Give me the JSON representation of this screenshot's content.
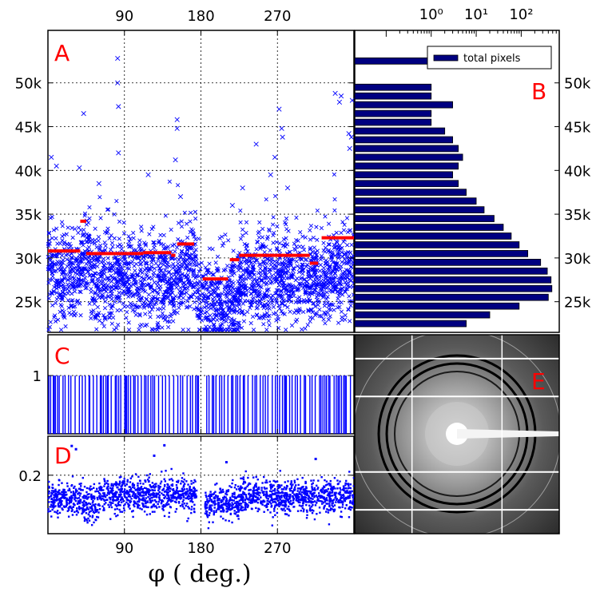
{
  "xlabel": "φ ( deg.)",
  "colors": {
    "scatter": "#0000ff",
    "median": "#ff0000",
    "bar": "#000080",
    "frame": "#000000"
  },
  "chart_data": [
    {
      "panel": "A",
      "type": "scatter",
      "xlim": [
        0,
        360
      ],
      "ylim": [
        21500,
        56000
      ],
      "x_ticks": [
        90,
        180,
        270
      ],
      "x_tick_labels": [
        "90",
        "180",
        "270"
      ],
      "y_ticks": [
        25000,
        30000,
        35000,
        40000,
        45000,
        50000
      ],
      "y_tick_labels": [
        "25k",
        "30k",
        "35k",
        "40k",
        "45k",
        "50k"
      ],
      "grid": true,
      "scatter_segments": [
        {
          "x": [
            0,
            40
          ],
          "center": 28000,
          "spread": 2600
        },
        {
          "x": [
            40,
            50
          ],
          "center": 30500,
          "spread": 2500
        },
        {
          "x": [
            50,
            150
          ],
          "center": 27500,
          "spread": 2700
        },
        {
          "x": [
            150,
            175
          ],
          "center": 29000,
          "spread": 2600
        },
        {
          "x": [
            175,
            225
          ],
          "center": 25000,
          "spread": 2300
        },
        {
          "x": [
            225,
            330
          ],
          "center": 27500,
          "spread": 2600
        },
        {
          "x": [
            330,
            360
          ],
          "center": 28500,
          "spread": 2600
        }
      ],
      "outliers": [
        {
          "x": 42,
          "y": 46500
        },
        {
          "x": 82,
          "y": 52800
        },
        {
          "x": 82,
          "y": 50000
        },
        {
          "x": 83,
          "y": 47300
        },
        {
          "x": 83,
          "y": 42000
        },
        {
          "x": 60,
          "y": 38500
        },
        {
          "x": 118,
          "y": 39500
        },
        {
          "x": 152,
          "y": 45800
        },
        {
          "x": 152,
          "y": 44800
        },
        {
          "x": 150,
          "y": 41200
        },
        {
          "x": 156,
          "y": 37000
        },
        {
          "x": 4,
          "y": 41500
        },
        {
          "x": 10,
          "y": 40500
        },
        {
          "x": 37,
          "y": 40300
        },
        {
          "x": 272,
          "y": 47000
        },
        {
          "x": 275,
          "y": 44800
        },
        {
          "x": 276,
          "y": 43800
        },
        {
          "x": 245,
          "y": 43000
        },
        {
          "x": 267,
          "y": 41500
        },
        {
          "x": 282,
          "y": 38000
        },
        {
          "x": 338,
          "y": 48800
        },
        {
          "x": 345,
          "y": 48500
        },
        {
          "x": 343,
          "y": 47800
        },
        {
          "x": 358,
          "y": 48000
        },
        {
          "x": 354,
          "y": 44200
        },
        {
          "x": 357,
          "y": 43800
        },
        {
          "x": 355,
          "y": 42500
        },
        {
          "x": 262,
          "y": 39500
        },
        {
          "x": 229,
          "y": 38000
        },
        {
          "x": 217,
          "y": 36000
        }
      ],
      "median_segments": [
        {
          "x": [
            0,
            38
          ],
          "y": 30800
        },
        {
          "x": [
            38,
            45
          ],
          "y": 34200
        },
        {
          "x": [
            45,
            112
          ],
          "y": 30500
        },
        {
          "x": [
            112,
            145
          ],
          "y": 30600
        },
        {
          "x": [
            145,
            150
          ],
          "y": 30300
        },
        {
          "x": [
            152,
            172
          ],
          "y": 31600
        },
        {
          "x": [
            182,
            212
          ],
          "y": 27600
        },
        {
          "x": [
            214,
            225
          ],
          "y": 29800
        },
        {
          "x": [
            225,
            308
          ],
          "y": 30300
        },
        {
          "x": [
            308,
            318
          ],
          "y": 29400
        },
        {
          "x": [
            322,
            360
          ],
          "y": 32300
        }
      ]
    },
    {
      "panel": "B",
      "type": "bar",
      "orientation": "horizontal",
      "xscale": "log",
      "xlim": [
        0.02,
        700
      ],
      "x_ticks": [
        1,
        10,
        100
      ],
      "x_tick_labels": [
        "10⁰",
        "10¹",
        "10²"
      ],
      "ylim": [
        21500,
        56000
      ],
      "y_ticks": [
        25000,
        30000,
        35000,
        40000,
        45000,
        50000
      ],
      "y_tick_labels": [
        "25k",
        "30k",
        "35k",
        "40k",
        "45k",
        "50k"
      ],
      "legend": {
        "label": "total pixels",
        "position": "top-right"
      },
      "bins": [
        22500,
        23500,
        24500,
        25500,
        26500,
        27500,
        28500,
        29500,
        30500,
        31500,
        32500,
        33500,
        34500,
        35500,
        36500,
        37500,
        38500,
        39500,
        40500,
        41500,
        42500,
        43500,
        44500,
        45500,
        46500,
        47500,
        48500,
        49500,
        52500
      ],
      "values": [
        6,
        20,
        90,
        400,
        480,
        460,
        380,
        270,
        140,
        90,
        60,
        40,
        25,
        15,
        10,
        6,
        4,
        3,
        4,
        5,
        4,
        3,
        2,
        1,
        1,
        3,
        1,
        1,
        1
      ]
    },
    {
      "panel": "C",
      "type": "bar",
      "xlim": [
        0,
        360
      ],
      "ylim": [
        0,
        1.7
      ],
      "y_ticks": [
        1
      ],
      "y_tick_labels": [
        "1"
      ],
      "x_ticks": [
        90,
        180,
        270
      ],
      "grid": true,
      "gaps": [
        [
          178,
          186
        ]
      ]
    },
    {
      "panel": "D",
      "type": "scatter",
      "xlim": [
        0,
        360
      ],
      "ylim": [
        0.11,
        0.26
      ],
      "y_ticks": [
        0.2
      ],
      "y_tick_labels": [
        "0.2"
      ],
      "x_ticks": [
        90,
        180,
        270
      ],
      "x_tick_labels": [
        "90",
        "180",
        "270"
      ],
      "grid": true,
      "scatter_segments": [
        {
          "x": [
            0,
            40
          ],
          "center": 0.165,
          "spread": 0.012
        },
        {
          "x": [
            40,
            60
          ],
          "center": 0.155,
          "spread": 0.014
        },
        {
          "x": [
            60,
            175
          ],
          "center": 0.17,
          "spread": 0.013
        },
        {
          "x": [
            178,
            185
          ],
          "center": 0.14,
          "spread": 0.0
        },
        {
          "x": [
            185,
            225
          ],
          "center": 0.158,
          "spread": 0.013
        },
        {
          "x": [
            225,
            360
          ],
          "center": 0.168,
          "spread": 0.013
        }
      ],
      "outliers": [
        {
          "x": 28,
          "y": 0.245
        },
        {
          "x": 33,
          "y": 0.24
        },
        {
          "x": 125,
          "y": 0.23
        },
        {
          "x": 137,
          "y": 0.246
        },
        {
          "x": 315,
          "y": 0.225
        },
        {
          "x": 210,
          "y": 0.22
        }
      ]
    },
    {
      "panel": "E",
      "type": "image",
      "description_shown": "diffraction rings"
    }
  ],
  "panels": {
    "A": "A",
    "B": "B",
    "C": "C",
    "D": "D",
    "E": "E"
  }
}
